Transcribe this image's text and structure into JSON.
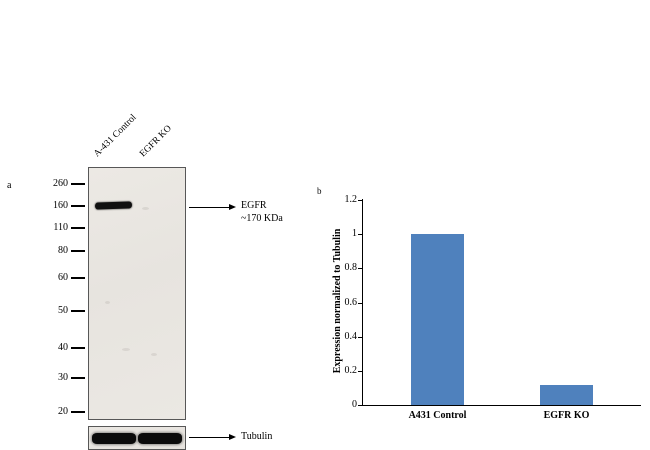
{
  "figure": {
    "panel_a": {
      "label": "a",
      "lanes": [
        "A-431 Control",
        "EGFR KO"
      ],
      "mw_markers": [
        260,
        160,
        110,
        80,
        60,
        50,
        40,
        30,
        20
      ],
      "target_annotation": [
        "EGFR",
        "~170 KDa"
      ],
      "loading_control_label": "Tubulin",
      "bands": [
        {
          "lane": "A-431 Control",
          "target": "EGFR",
          "approx_kda": 170,
          "intensity": "strong"
        },
        {
          "lane": "EGFR KO",
          "target": "EGFR",
          "approx_kda": 170,
          "intensity": "absent"
        },
        {
          "lane": "A-431 Control",
          "target": "Tubulin",
          "intensity": "strong"
        },
        {
          "lane": "EGFR KO",
          "target": "Tubulin",
          "intensity": "strong"
        }
      ]
    },
    "panel_b": {
      "label": "b"
    }
  },
  "chart_data": {
    "type": "bar",
    "categories": [
      "A431 Control",
      "EGFR KO"
    ],
    "values": [
      1.0,
      0.12
    ],
    "title": "",
    "xlabel": "",
    "ylabel": "Expression normalized to Tubulin",
    "ylim": [
      0,
      1.2
    ],
    "yticks": [
      0,
      0.2,
      0.4,
      0.6,
      0.8,
      1,
      1.2
    ],
    "bar_color": "#4f81bd",
    "legend": "none",
    "grid": false
  }
}
